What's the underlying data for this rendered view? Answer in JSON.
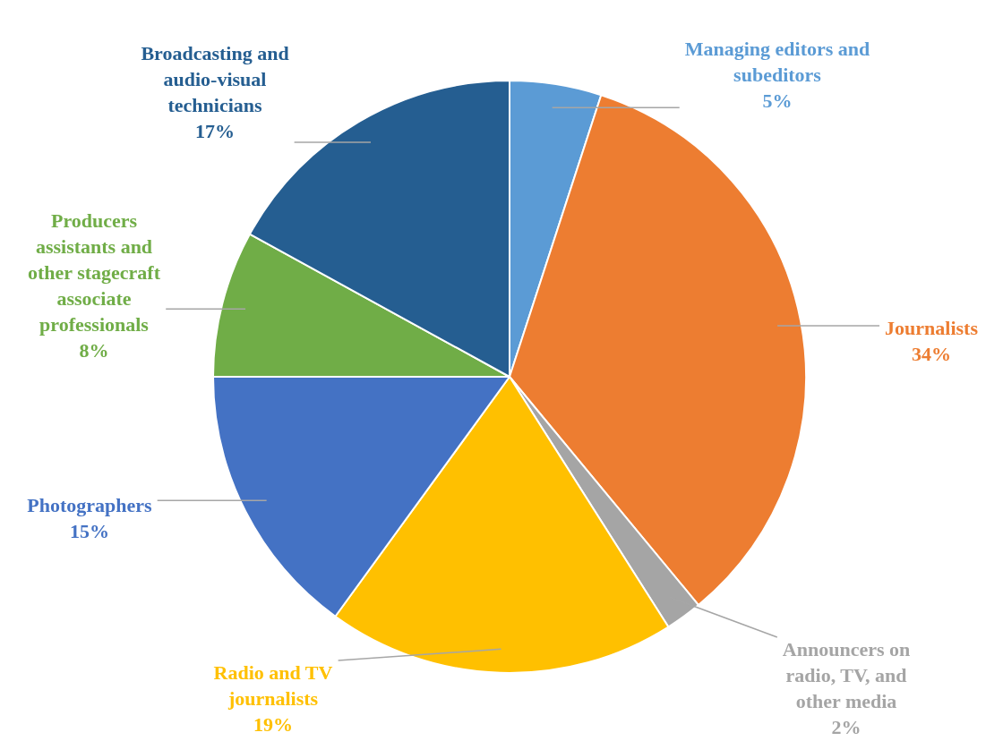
{
  "chart_data": {
    "type": "pie",
    "categories": [
      "Managing editors and subeditors",
      "Journalists",
      "Announcers on radio, TV, and other media",
      "Radio and TV journalists",
      "Photographers",
      "Producers assistants and other stagecraft associate professionals",
      "Broadcasting and audio-visual technicians"
    ],
    "values": [
      5,
      34,
      2,
      19,
      15,
      8,
      17
    ],
    "value_labels": [
      "5%",
      "34%",
      "2%",
      "19%",
      "15%",
      "8%",
      "17%"
    ],
    "colors": [
      "#5b9bd5",
      "#ed7d31",
      "#a5a5a5",
      "#ffc000",
      "#4472c4",
      "#70ad47",
      "#255e91"
    ],
    "legend": false
  }
}
